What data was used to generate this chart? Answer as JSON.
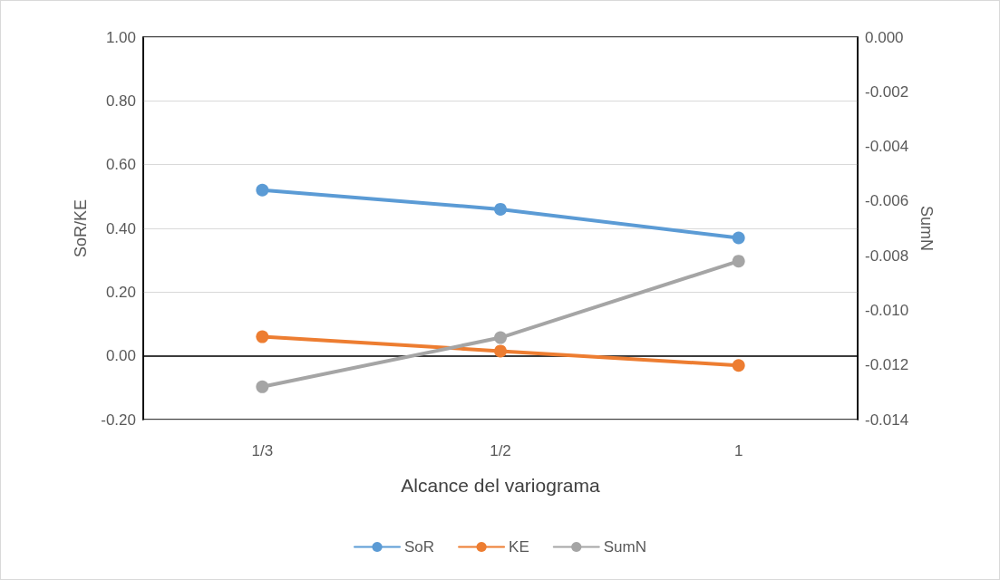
{
  "chart_data": {
    "type": "line",
    "xlabel": "Alcance del variograma",
    "ylabel": "SoR/KE",
    "y2label": "SumN",
    "categories": [
      "1/3",
      "1/2",
      "1"
    ],
    "series": [
      {
        "name": "SoR",
        "color": "#5b9bd5",
        "values": [
          0.52,
          0.46,
          0.37
        ]
      },
      {
        "name": "KE",
        "color": "#ed7d31",
        "values": [
          0.06,
          0.015,
          -0.03
        ]
      },
      {
        "name": "SumN",
        "color": "#a5a5a5",
        "values": [
          -0.0128,
          -0.011,
          -0.0082
        ],
        "axis": "y2"
      }
    ],
    "ylim": [
      -0.2,
      1.0
    ],
    "yticks": [
      {
        "value": -0.2,
        "label": "-0.20"
      },
      {
        "value": 0,
        "label": "0.00"
      },
      {
        "value": 0.2,
        "label": "0.20"
      },
      {
        "value": 0.4,
        "label": "0.40"
      },
      {
        "value": 0.6,
        "label": "0.60"
      },
      {
        "value": 0.8,
        "label": "0.80"
      },
      {
        "value": 1.0,
        "label": "1.00"
      }
    ],
    "y2lim": [
      -0.014,
      0.0
    ],
    "y2ticks": [
      {
        "value": -0.014,
        "label": "-0.014"
      },
      {
        "value": -0.012,
        "label": "-0.012"
      },
      {
        "value": -0.01,
        "label": "-0.010"
      },
      {
        "value": -0.008,
        "label": "-0.008"
      },
      {
        "value": -0.006,
        "label": "-0.006"
      },
      {
        "value": -0.004,
        "label": "-0.004"
      },
      {
        "value": -0.002,
        "label": "-0.002"
      },
      {
        "value": 0,
        "label": "0.000"
      }
    ],
    "grid": "y",
    "legend": "bottom",
    "marker": "circle",
    "line_style": "solid"
  }
}
